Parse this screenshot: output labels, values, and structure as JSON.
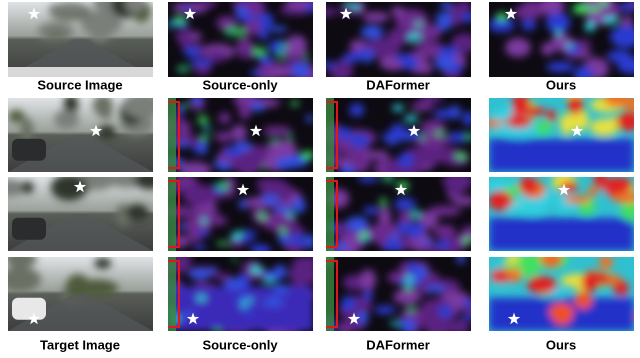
{
  "top_labels": [
    "Source Image",
    "Source-only",
    "DAFormer",
    "Ours"
  ],
  "bottom_labels": [
    "Target Image",
    "Source-only",
    "DAFormer",
    "Ours"
  ]
}
